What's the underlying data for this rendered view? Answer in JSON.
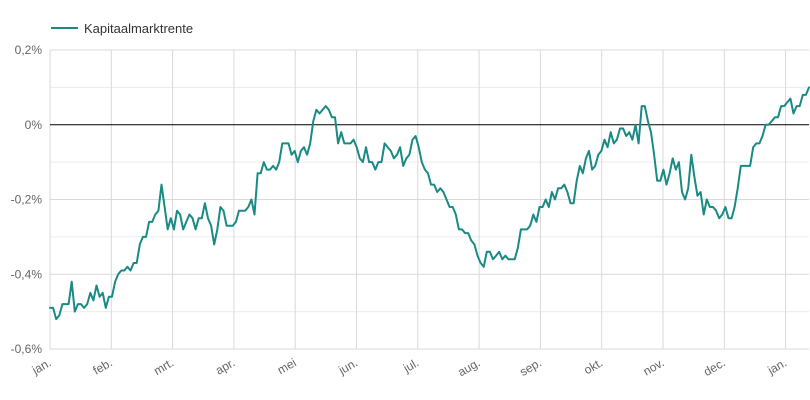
{
  "chart_data": {
    "type": "line",
    "legend": {
      "position": "top-left"
    },
    "grid": true,
    "zero_line": true,
    "colors": {
      "series": "#1a8a84",
      "grid": "#d9d9d9",
      "zero": "#000000",
      "axis_text": "#666666"
    },
    "ylim": [
      -0.6,
      0.2
    ],
    "y_ticks": [
      {
        "value": 0.2,
        "label": "0,2%"
      },
      {
        "value": 0.0,
        "label": "0%"
      },
      {
        "value": -0.2,
        "label": "-0,2%"
      },
      {
        "value": -0.4,
        "label": "-0,4%"
      },
      {
        "value": -0.6,
        "label": "-0,6%"
      }
    ],
    "x_ticks": [
      "jan.",
      "feb.",
      "mrt.",
      "apr.",
      "mei",
      "jun.",
      "jul.",
      "aug.",
      "sep.",
      "okt.",
      "nov.",
      "dec.",
      "jan."
    ],
    "series": [
      {
        "name": "Kapitaalmarktrente",
        "values": [
          -0.49,
          -0.49,
          -0.52,
          -0.51,
          -0.48,
          -0.48,
          -0.48,
          -0.42,
          -0.5,
          -0.48,
          -0.48,
          -0.49,
          -0.48,
          -0.45,
          -0.47,
          -0.43,
          -0.46,
          -0.45,
          -0.49,
          -0.46,
          -0.46,
          -0.42,
          -0.4,
          -0.39,
          -0.39,
          -0.38,
          -0.39,
          -0.37,
          -0.37,
          -0.32,
          -0.3,
          -0.3,
          -0.26,
          -0.26,
          -0.24,
          -0.23,
          -0.16,
          -0.22,
          -0.28,
          -0.25,
          -0.28,
          -0.23,
          -0.24,
          -0.28,
          -0.26,
          -0.24,
          -0.25,
          -0.28,
          -0.25,
          -0.25,
          -0.21,
          -0.25,
          -0.27,
          -0.32,
          -0.28,
          -0.22,
          -0.23,
          -0.27,
          -0.27,
          -0.27,
          -0.26,
          -0.23,
          -0.23,
          -0.23,
          -0.22,
          -0.2,
          -0.24,
          -0.13,
          -0.13,
          -0.1,
          -0.12,
          -0.12,
          -0.11,
          -0.12,
          -0.1,
          -0.05,
          -0.05,
          -0.05,
          -0.08,
          -0.07,
          -0.1,
          -0.07,
          -0.06,
          -0.08,
          -0.05,
          0.01,
          0.04,
          0.03,
          0.04,
          0.05,
          0.04,
          0.02,
          0.02,
          -0.05,
          -0.02,
          -0.05,
          -0.05,
          -0.05,
          -0.04,
          -0.06,
          -0.09,
          -0.1,
          -0.06,
          -0.1,
          -0.1,
          -0.12,
          -0.1,
          -0.1,
          -0.05,
          -0.06,
          -0.07,
          -0.09,
          -0.08,
          -0.06,
          -0.11,
          -0.09,
          -0.08,
          -0.04,
          -0.03,
          -0.06,
          -0.1,
          -0.12,
          -0.13,
          -0.16,
          -0.16,
          -0.18,
          -0.17,
          -0.18,
          -0.2,
          -0.22,
          -0.22,
          -0.24,
          -0.28,
          -0.28,
          -0.29,
          -0.29,
          -0.31,
          -0.32,
          -0.35,
          -0.37,
          -0.38,
          -0.34,
          -0.34,
          -0.36,
          -0.35,
          -0.34,
          -0.36,
          -0.35,
          -0.36,
          -0.36,
          -0.36,
          -0.33,
          -0.28,
          -0.28,
          -0.28,
          -0.27,
          -0.24,
          -0.26,
          -0.22,
          -0.22,
          -0.2,
          -0.22,
          -0.18,
          -0.2,
          -0.17,
          -0.17,
          -0.16,
          -0.18,
          -0.21,
          -0.21,
          -0.15,
          -0.11,
          -0.13,
          -0.09,
          -0.07,
          -0.12,
          -0.11,
          -0.08,
          -0.07,
          -0.04,
          -0.06,
          -0.02,
          -0.05,
          -0.04,
          -0.01,
          -0.01,
          -0.03,
          -0.02,
          -0.04,
          0.0,
          -0.05,
          0.05,
          0.05,
          0.01,
          -0.02,
          -0.08,
          -0.15,
          -0.15,
          -0.12,
          -0.16,
          -0.13,
          -0.09,
          -0.12,
          -0.1,
          -0.18,
          -0.2,
          -0.17,
          -0.08,
          -0.14,
          -0.19,
          -0.18,
          -0.24,
          -0.2,
          -0.22,
          -0.22,
          -0.23,
          -0.25,
          -0.24,
          -0.22,
          -0.25,
          -0.25,
          -0.22,
          -0.17,
          -0.11,
          -0.11,
          -0.11,
          -0.11,
          -0.06,
          -0.05,
          -0.05,
          -0.03,
          0.0,
          0.0,
          0.01,
          0.02,
          0.02,
          0.05,
          0.05,
          0.06,
          0.07,
          0.03,
          0.05,
          0.05,
          0.08,
          0.08,
          0.1
        ]
      }
    ]
  }
}
